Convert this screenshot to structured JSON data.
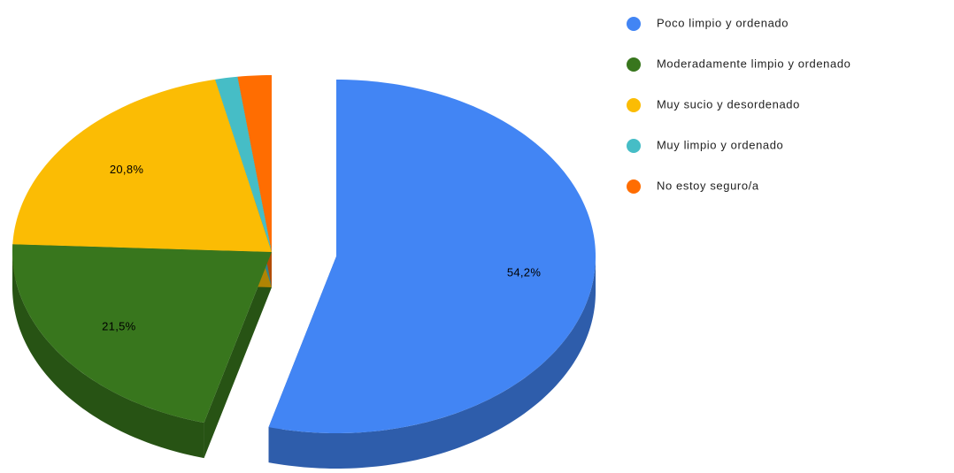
{
  "chart_data": {
    "type": "pie",
    "categories": [
      "Poco limpio y ordenado",
      "Moderadamente limpio y ordenado",
      "Muy sucio y desordenado",
      "Muy limpio y ordenado",
      "No estoy seguro/a"
    ],
    "values": [
      54.2,
      21.5,
      20.8,
      1.4,
      2.1
    ],
    "value_labels": [
      "54,2%",
      "21,5%",
      "20,8%",
      null,
      null
    ],
    "colors": [
      "#4285f4",
      "#38761d",
      "#fbbc04",
      "#46bdc6",
      "#ff6d01"
    ],
    "legend": "right"
  }
}
